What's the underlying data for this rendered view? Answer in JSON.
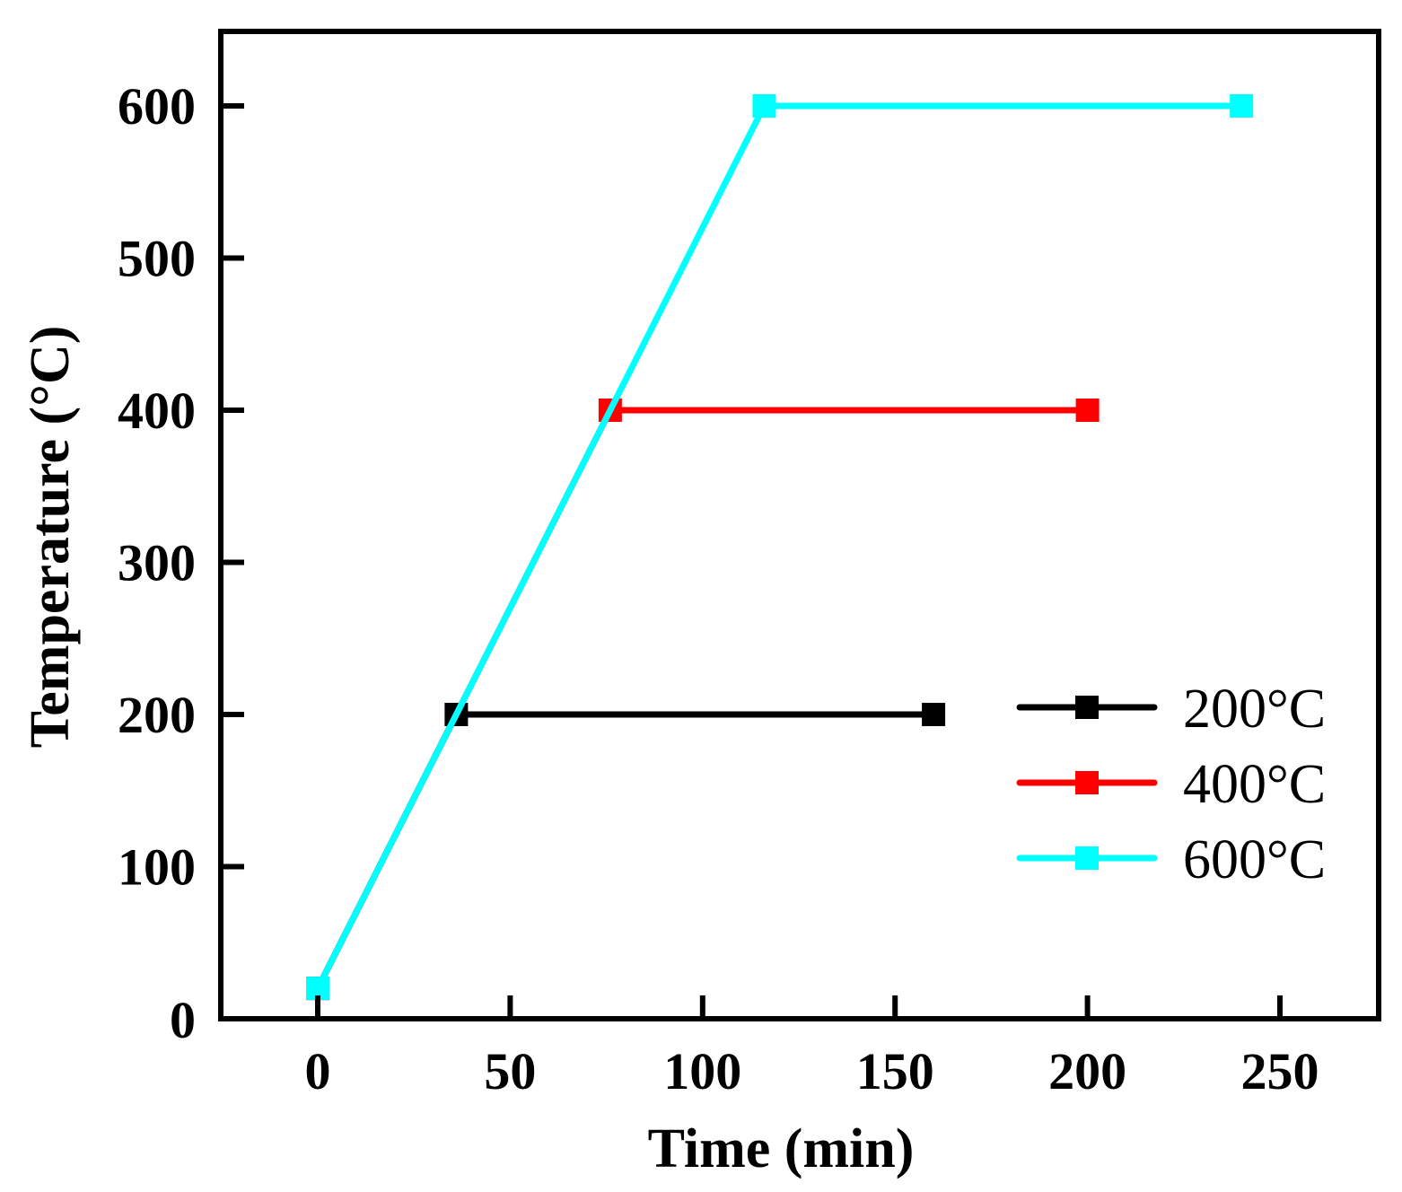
{
  "chart_data": {
    "type": "line",
    "title": "",
    "xlabel": "Time (min)",
    "ylabel": "Temperature (°C)",
    "xlim": [
      -25,
      275
    ],
    "ylim": [
      0,
      650
    ],
    "xticks": [
      0,
      50,
      100,
      150,
      200,
      250
    ],
    "yticks": [
      0,
      100,
      200,
      300,
      400,
      500,
      600
    ],
    "xtick_labels": [
      "0",
      "50",
      "100",
      "150",
      "200",
      "250"
    ],
    "ytick_labels": [
      "0",
      "100",
      "200",
      "300",
      "400",
      "500",
      "600"
    ],
    "grid": false,
    "legend_position": "bottom-right",
    "series": [
      {
        "name": "200°C",
        "color": "#000000",
        "marker": "square",
        "points": [
          [
            0,
            20
          ],
          [
            36,
            200
          ],
          [
            160,
            200
          ]
        ]
      },
      {
        "name": "400°C",
        "color": "#ff0000",
        "marker": "square",
        "points": [
          [
            0,
            20
          ],
          [
            76,
            400
          ],
          [
            200,
            400
          ]
        ]
      },
      {
        "name": "600°C",
        "color": "#00ffff",
        "marker": "square",
        "points": [
          [
            0,
            20
          ],
          [
            116,
            600
          ],
          [
            240,
            600
          ]
        ]
      }
    ]
  }
}
